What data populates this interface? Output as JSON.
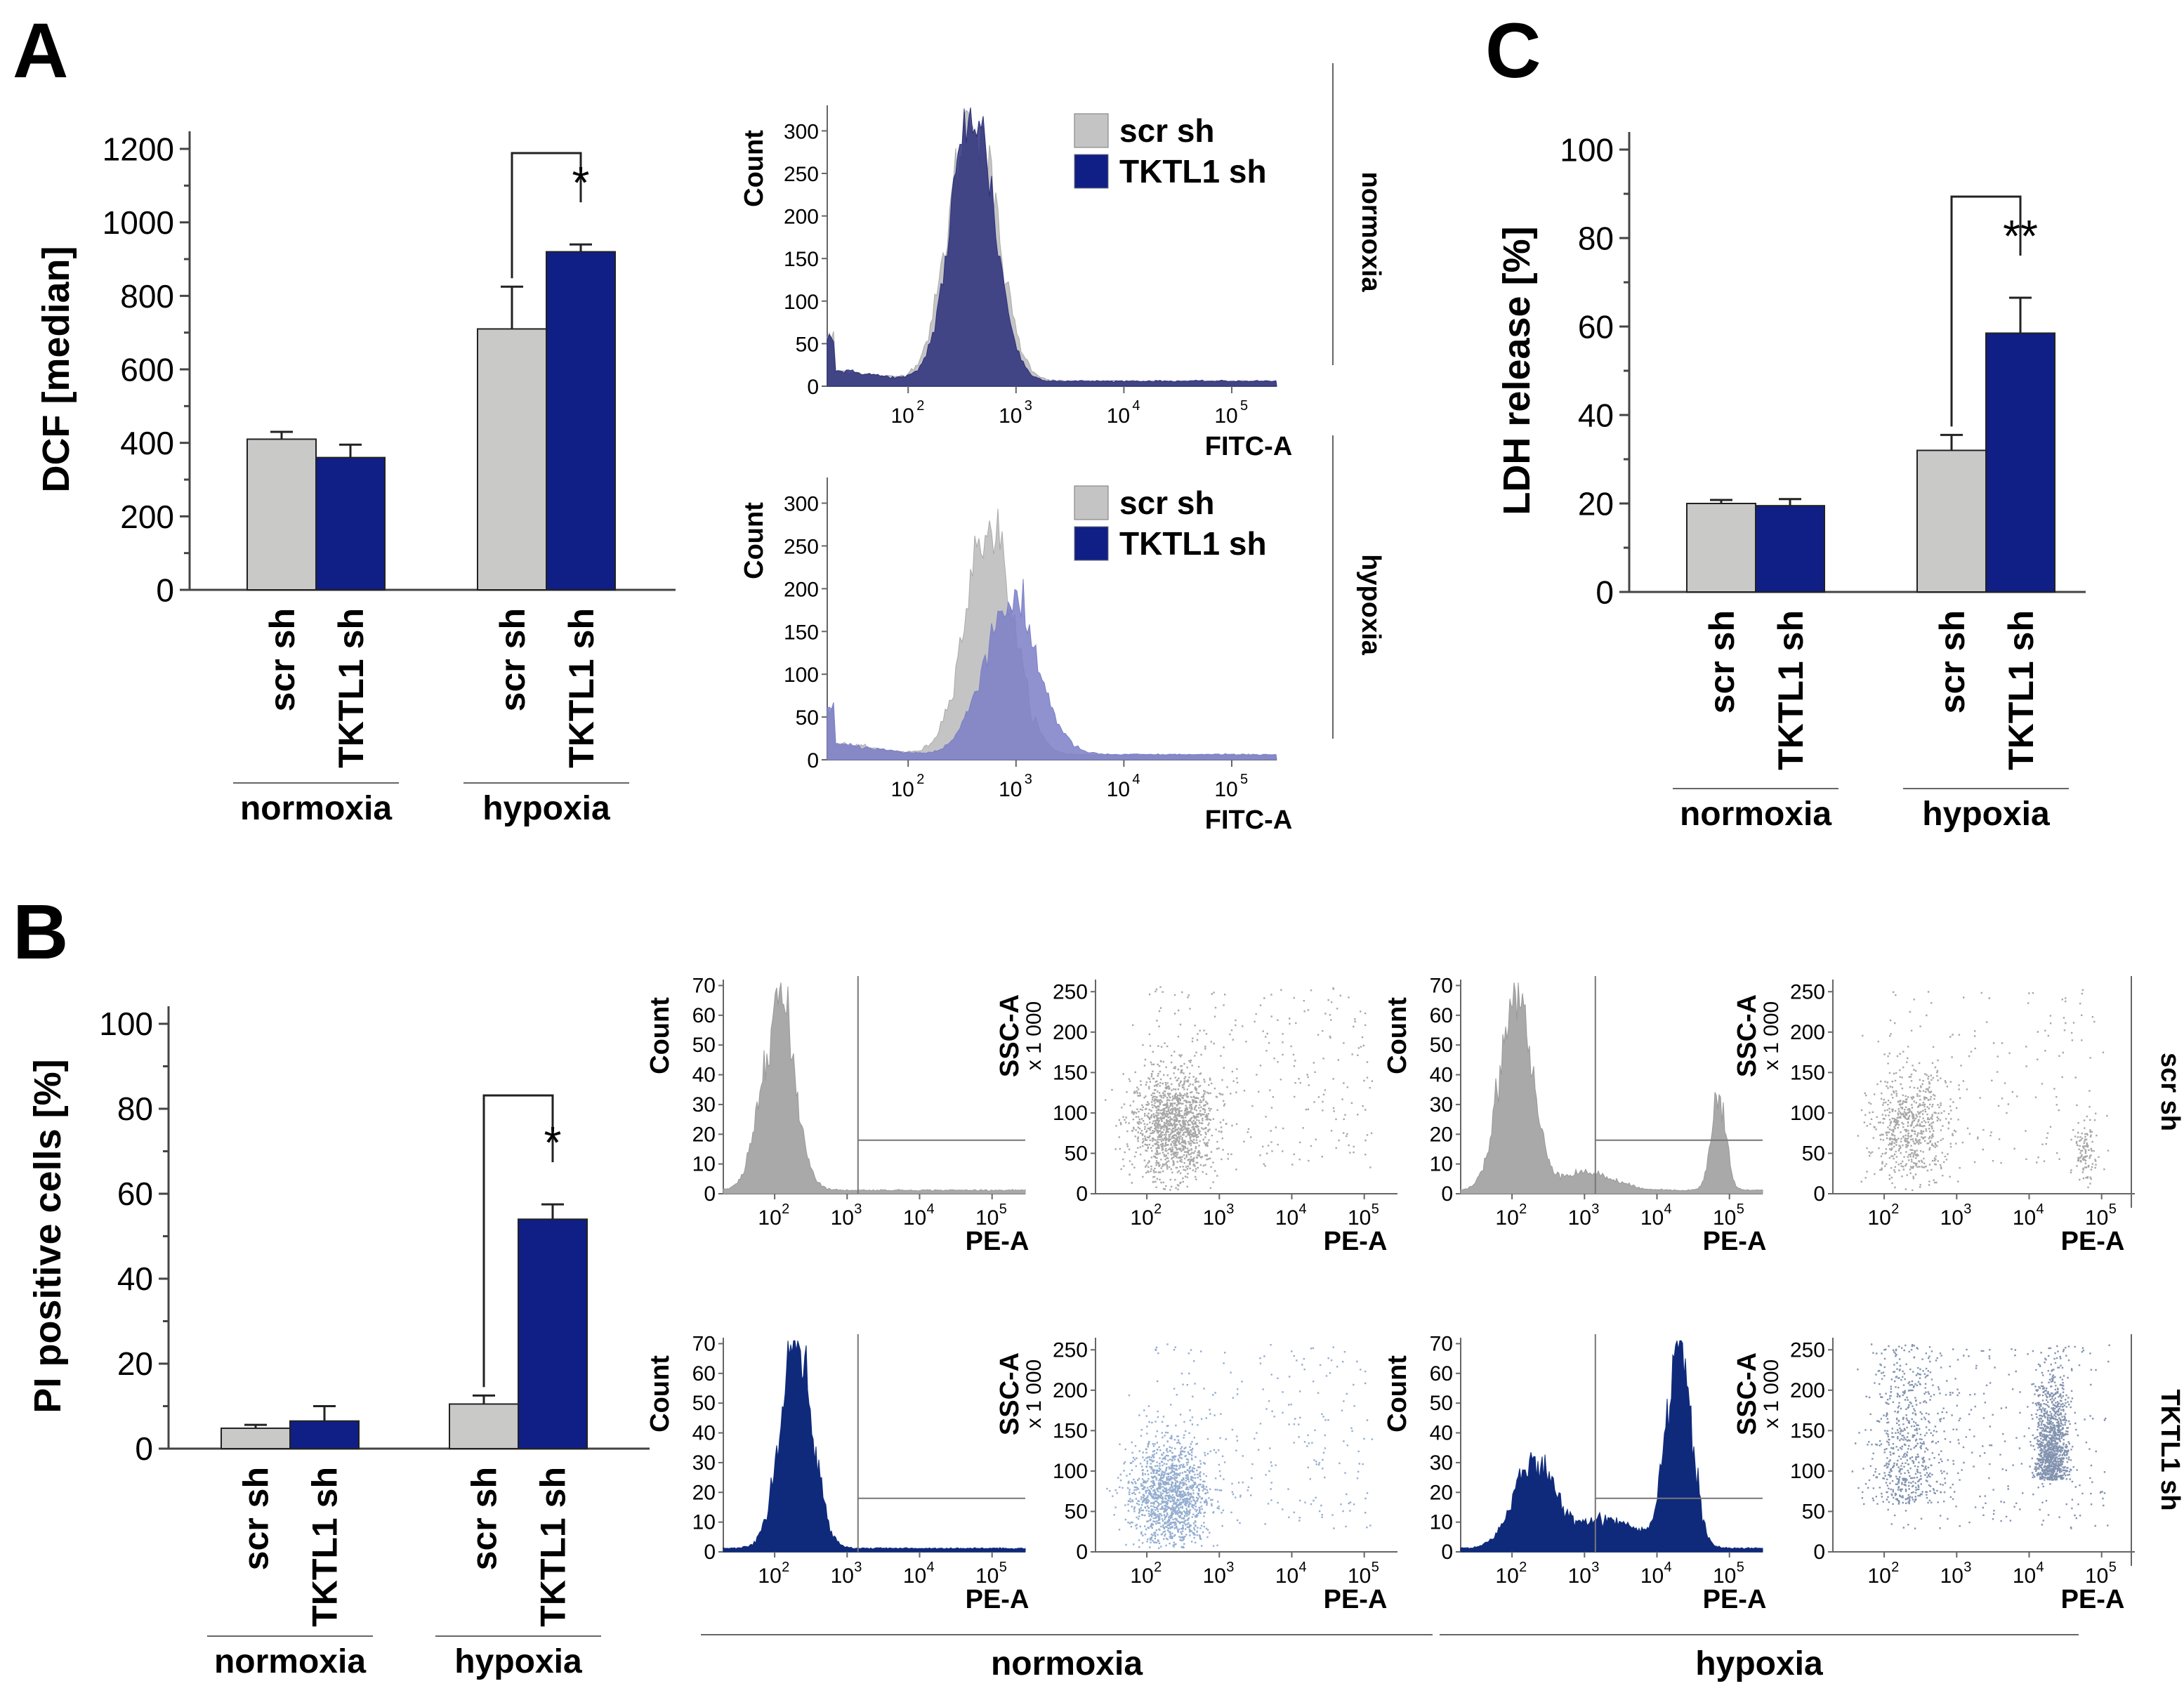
{
  "panel_labels": {
    "a": "A",
    "b": "B",
    "c": "C"
  },
  "chart_data": [
    {
      "id": "A-bar",
      "type": "bar",
      "ylabel": "DCF [median]",
      "ylim": [
        0,
        1200
      ],
      "yticks": [
        "0",
        "200",
        "400",
        "600",
        "800",
        "1000",
        "1200"
      ],
      "categories": [
        "scr sh",
        "TKTL1 sh",
        "scr sh",
        "TKTL1 sh"
      ],
      "groups": [
        "normoxia",
        "hypoxia"
      ],
      "values": [
        410,
        360,
        710,
        920
      ],
      "errors": [
        20,
        35,
        115,
        20
      ],
      "significance": "*",
      "series_colors": [
        "#c9cac8",
        "#0f1f85"
      ]
    },
    {
      "id": "A-hist-normoxia",
      "type": "area",
      "ylabel": "Count",
      "xlabel": "FITC-A",
      "yticks": [
        "0",
        "50",
        "100",
        "150",
        "200",
        "250",
        "300"
      ],
      "xticks": [
        "10",
        "2",
        "10",
        "3",
        "10",
        "4",
        "10",
        "5"
      ],
      "legend": [
        "scr sh",
        "TKTL1 sh"
      ],
      "side_label": "normoxia",
      "series": [
        {
          "name": "scr sh",
          "peak_log10": 2.6,
          "peak_count": 315,
          "color": "#c4c4c4"
        },
        {
          "name": "TKTL1 sh",
          "peak_log10": 2.6,
          "peak_count": 320,
          "color": "#2b2f7a"
        }
      ]
    },
    {
      "id": "A-hist-hypoxia",
      "type": "area",
      "ylabel": "Count",
      "xlabel": "FITC-A",
      "yticks": [
        "0",
        "50",
        "100",
        "150",
        "200",
        "250",
        "300"
      ],
      "xticks": [
        "10",
        "2",
        "10",
        "3",
        "10",
        "4",
        "10",
        "5"
      ],
      "legend": [
        "scr sh",
        "TKTL1 sh"
      ],
      "side_label": "hypoxia",
      "series": [
        {
          "name": "scr sh",
          "peak_log10": 2.75,
          "peak_count": 270,
          "color": "#c4c4c4"
        },
        {
          "name": "TKTL1 sh",
          "peak_log10": 2.95,
          "peak_count": 180,
          "color": "#7b7fc7"
        }
      ]
    },
    {
      "id": "C-bar",
      "type": "bar",
      "ylabel": "LDH release [%]",
      "ylim": [
        0,
        100
      ],
      "yticks": [
        "0",
        "20",
        "40",
        "60",
        "80",
        "100"
      ],
      "categories": [
        "scr sh",
        "TKTL1 sh",
        "scr sh",
        "TKTL1 sh"
      ],
      "groups": [
        "normoxia",
        "hypoxia"
      ],
      "values": [
        20,
        19.5,
        32,
        58.5
      ],
      "errors": [
        0.8,
        1.5,
        3.5,
        8
      ],
      "significance": "**",
      "series_colors": [
        "#c9cac8",
        "#0f1f85"
      ]
    },
    {
      "id": "B-bar",
      "type": "bar",
      "ylabel": "PI positive cells [%]",
      "ylim": [
        0,
        100
      ],
      "yticks": [
        "0",
        "20",
        "40",
        "60",
        "80",
        "100"
      ],
      "categories": [
        "scr sh",
        "TKTL1 sh",
        "scr sh",
        "TKTL1 sh"
      ],
      "groups": [
        "normoxia",
        "hypoxia"
      ],
      "values": [
        4.8,
        6.5,
        10.5,
        54
      ],
      "errors": [
        0.8,
        3.5,
        2,
        3.5
      ],
      "significance": "*",
      "series_colors": [
        "#c9cac8",
        "#0f1f85"
      ]
    },
    {
      "id": "B-flow",
      "type": "histogram-and-scatter-grid",
      "hist_ylabel": "Count",
      "scatter_ylabel": "SSC-A",
      "scatter_yunit": "x 1 000",
      "xlabel": "PE-A",
      "hist_yticks": [
        "0",
        "10",
        "20",
        "30",
        "40",
        "50",
        "60",
        "70"
      ],
      "scatter_yticks": [
        "0",
        "50",
        "100",
        "150",
        "200",
        "250"
      ],
      "xticks": [
        "10",
        "2",
        "10",
        "3",
        "10",
        "4",
        "10",
        "5"
      ],
      "row_labels": [
        "scr sh",
        "TKTL1 sh"
      ],
      "group_labels": [
        "normoxia",
        "hypoxia"
      ],
      "colors": {
        "scr": "#9c9c9c",
        "tktl": "#0f2a7a",
        "tktl_light": "#3c6aa8"
      }
    }
  ]
}
